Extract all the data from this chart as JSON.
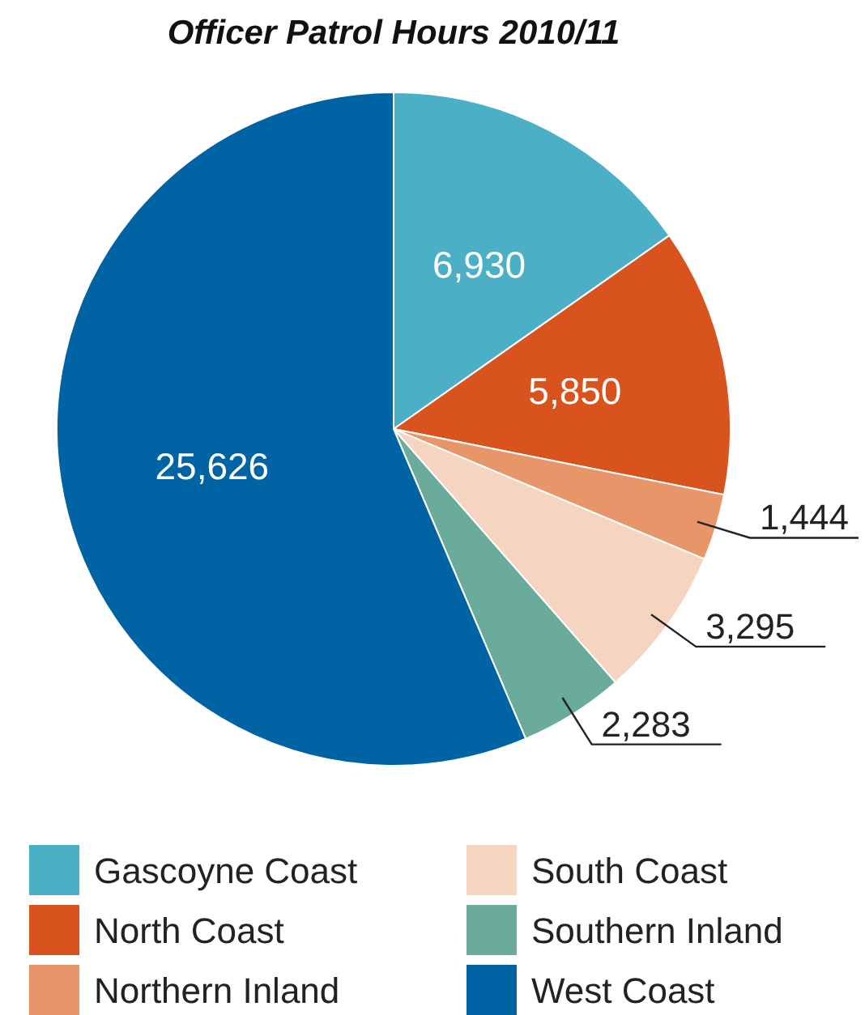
{
  "chart_data": {
    "type": "pie",
    "title": "Officer Patrol Hours 2010/11",
    "categories": [
      "Gascoyne Coast",
      "North Coast",
      "Northern Inland",
      "South Coast",
      "Southern Inland",
      "West Coast"
    ],
    "values": [
      6930,
      5850,
      1444,
      3295,
      2283,
      25626
    ],
    "colors": [
      "#4bafc6",
      "#d9531e",
      "#e8956a",
      "#f5d5c0",
      "#6aab9c",
      "#0063a3"
    ],
    "value_labels": [
      "6,930",
      "5,850",
      "1,444",
      "3,295",
      "2,283",
      "25,626"
    ],
    "legend": "bottom"
  }
}
